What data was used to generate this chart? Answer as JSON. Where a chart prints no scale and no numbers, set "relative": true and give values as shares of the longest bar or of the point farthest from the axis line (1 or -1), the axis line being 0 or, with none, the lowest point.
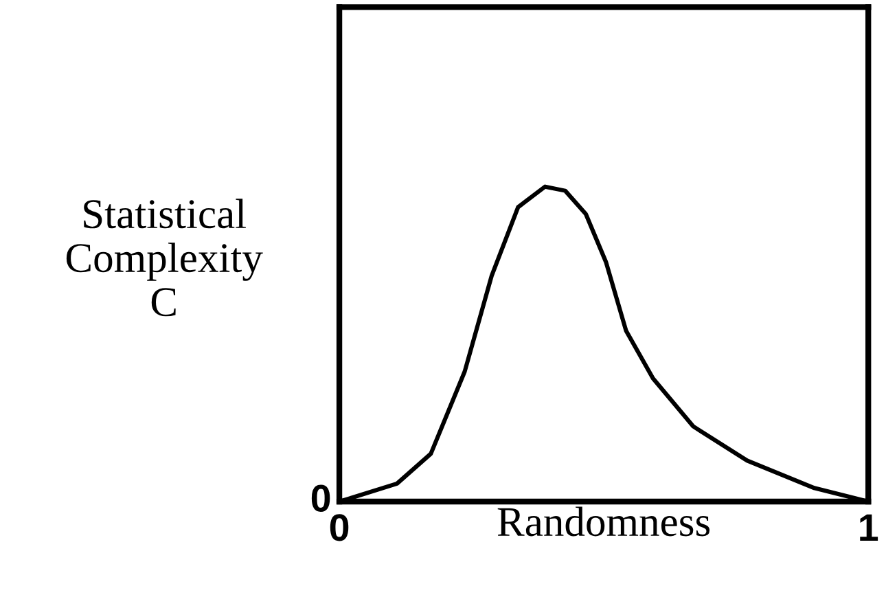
{
  "chart_data": {
    "type": "line",
    "relative": true,
    "xlabel": "Randomness",
    "ylabel": "Statistical\nComplexity\nC",
    "xlim": [
      0,
      1
    ],
    "xticks": [
      0,
      1
    ],
    "annotations": [
      "0"
    ],
    "legend": false,
    "marker": "none",
    "line_style": "solid",
    "series": [
      {
        "color": "#000000",
        "x": [
          0,
          0.109,
          0.173,
          0.237,
          0.288,
          0.338,
          0.389,
          0.427,
          0.466,
          0.504,
          0.542,
          0.593,
          0.669,
          0.771,
          0.898,
          1
        ],
        "values": [
          0,
          0.057,
          0.152,
          0.413,
          0.717,
          0.935,
          1,
          0.987,
          0.913,
          0.761,
          0.543,
          0.391,
          0.239,
          0.13,
          0.043,
          0
        ]
      }
    ]
  }
}
